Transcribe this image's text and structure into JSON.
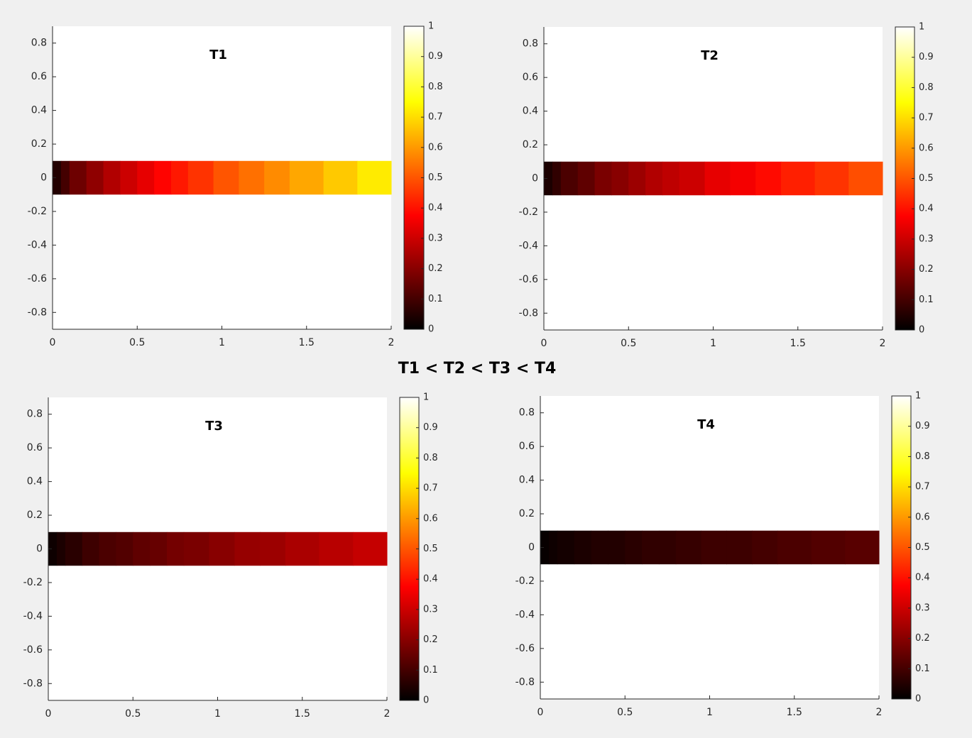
{
  "annotation": "T1 < T2 < T3 < T4",
  "chart_data": [
    {
      "type": "heatmap",
      "title": "T1",
      "colormap": "hot",
      "x_edges": [
        0,
        0.05,
        0.1,
        0.2,
        0.3,
        0.4,
        0.5,
        0.6,
        0.7,
        0.8,
        0.95,
        1.1,
        1.25,
        1.4,
        1.6,
        1.8,
        2.0
      ],
      "values": [
        0.05,
        0.1,
        0.16,
        0.21,
        0.26,
        0.3,
        0.34,
        0.38,
        0.41,
        0.45,
        0.5,
        0.54,
        0.58,
        0.62,
        0.67,
        0.72
      ],
      "y_extent": [
        -0.1,
        0.1
      ],
      "xlim": [
        0,
        2
      ],
      "ylim": [
        -0.9,
        0.9
      ],
      "xticks": [
        0,
        0.5,
        1,
        1.5,
        2
      ],
      "yticks": [
        -0.8,
        -0.6,
        -0.4,
        -0.2,
        0,
        0.2,
        0.4,
        0.6,
        0.8
      ],
      "clim": [
        0,
        1
      ],
      "cticks": [
        0,
        0.1,
        0.2,
        0.3,
        0.4,
        0.5,
        0.6,
        0.7,
        0.8,
        0.9,
        1
      ]
    },
    {
      "type": "heatmap",
      "title": "T2",
      "colormap": "hot",
      "x_edges": [
        0,
        0.05,
        0.1,
        0.2,
        0.3,
        0.4,
        0.5,
        0.6,
        0.7,
        0.8,
        0.95,
        1.1,
        1.25,
        1.4,
        1.6,
        1.8,
        2.0
      ],
      "values": [
        0.04,
        0.07,
        0.11,
        0.14,
        0.18,
        0.2,
        0.23,
        0.26,
        0.28,
        0.3,
        0.34,
        0.36,
        0.39,
        0.42,
        0.45,
        0.49
      ],
      "y_extent": [
        -0.1,
        0.1
      ],
      "xlim": [
        0,
        2
      ],
      "ylim": [
        -0.9,
        0.9
      ],
      "xticks": [
        0,
        0.5,
        1,
        1.5,
        2
      ],
      "yticks": [
        -0.8,
        -0.6,
        -0.4,
        -0.2,
        0,
        0.2,
        0.4,
        0.6,
        0.8
      ],
      "clim": [
        0,
        1
      ],
      "cticks": [
        0,
        0.1,
        0.2,
        0.3,
        0.4,
        0.5,
        0.6,
        0.7,
        0.8,
        0.9,
        1
      ]
    },
    {
      "type": "heatmap",
      "title": "T3",
      "colormap": "hot",
      "x_edges": [
        0,
        0.05,
        0.1,
        0.2,
        0.3,
        0.4,
        0.5,
        0.6,
        0.7,
        0.8,
        0.95,
        1.1,
        1.25,
        1.4,
        1.6,
        1.8,
        2.0
      ],
      "values": [
        0.02,
        0.04,
        0.06,
        0.09,
        0.11,
        0.12,
        0.14,
        0.15,
        0.17,
        0.18,
        0.2,
        0.22,
        0.23,
        0.25,
        0.27,
        0.29
      ],
      "y_extent": [
        -0.1,
        0.1
      ],
      "xlim": [
        0,
        2
      ],
      "ylim": [
        -0.9,
        0.9
      ],
      "xticks": [
        0,
        0.5,
        1,
        1.5,
        2
      ],
      "yticks": [
        -0.8,
        -0.6,
        -0.4,
        -0.2,
        0,
        0.2,
        0.4,
        0.6,
        0.8
      ],
      "clim": [
        0,
        1
      ],
      "cticks": [
        0,
        0.1,
        0.2,
        0.3,
        0.4,
        0.5,
        0.6,
        0.7,
        0.8,
        0.9,
        1
      ]
    },
    {
      "type": "heatmap",
      "title": "T4",
      "colormap": "hot",
      "x_edges": [
        0,
        0.05,
        0.1,
        0.2,
        0.3,
        0.4,
        0.5,
        0.6,
        0.7,
        0.8,
        0.95,
        1.1,
        1.25,
        1.4,
        1.6,
        1.8,
        2.0
      ],
      "values": [
        0.01,
        0.02,
        0.03,
        0.04,
        0.05,
        0.05,
        0.06,
        0.07,
        0.07,
        0.08,
        0.09,
        0.09,
        0.1,
        0.11,
        0.12,
        0.13
      ],
      "y_extent": [
        -0.1,
        0.1
      ],
      "xlim": [
        0,
        2
      ],
      "ylim": [
        -0.9,
        0.9
      ],
      "xticks": [
        0,
        0.5,
        1,
        1.5,
        2
      ],
      "yticks": [
        -0.8,
        -0.6,
        -0.4,
        -0.2,
        0,
        0.2,
        0.4,
        0.6,
        0.8
      ],
      "clim": [
        0,
        1
      ],
      "cticks": [
        0,
        0.1,
        0.2,
        0.3,
        0.4,
        0.5,
        0.6,
        0.7,
        0.8,
        0.9,
        1
      ]
    }
  ]
}
